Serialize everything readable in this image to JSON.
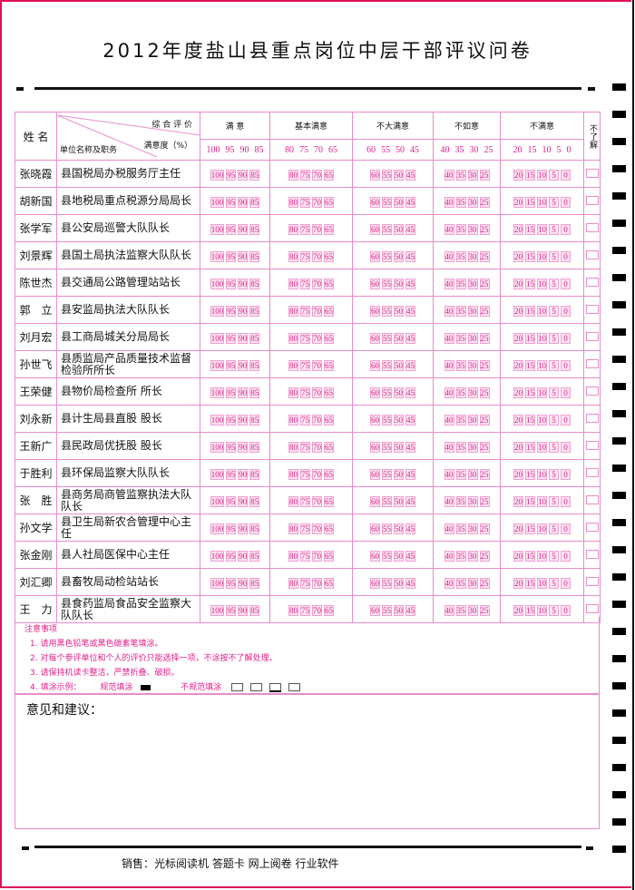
{
  "title": "2012年度盐山县重点岗位中层干部评议问卷",
  "header": {
    "name_label": "姓 名",
    "overall_label": "综 合 评 价",
    "satisfaction_label": "满意度（%）",
    "unit_label": "单位名称及职务",
    "unknown_label": "不了解",
    "categories": [
      {
        "label": "满  意",
        "scale": [
          "100",
          "95",
          "90",
          "85"
        ]
      },
      {
        "label": "基本满意",
        "scale": [
          "80",
          "75",
          "70",
          "65"
        ]
      },
      {
        "label": "不大满意",
        "scale": [
          "60",
          "55",
          "50",
          "45"
        ]
      },
      {
        "label": "不如意",
        "scale": [
          "40",
          "35",
          "30",
          "25"
        ]
      },
      {
        "label": "不满意",
        "scale": [
          "20",
          "15",
          "10",
          "5",
          "0"
        ]
      }
    ]
  },
  "rows": [
    {
      "name": "张晓霞",
      "unit": "县国税局办税服务厅主任"
    },
    {
      "name": "胡新国",
      "unit": "县地税局重点税源分局局长"
    },
    {
      "name": "张学军",
      "unit": "县公安局巡警大队队长"
    },
    {
      "name": "刘景辉",
      "unit": "县国土局执法监察大队队长"
    },
    {
      "name": "陈世杰",
      "unit": "县交通局公路管理站站长"
    },
    {
      "name": "郭　立",
      "unit": "县安监局执法大队队长"
    },
    {
      "name": "刘月宏",
      "unit": "县工商局城关分局局长"
    },
    {
      "name": "孙世飞",
      "unit": "县质监局产品质量技术监督检验所所长"
    },
    {
      "name": "王荣健",
      "unit": "县物价局检查所 所长"
    },
    {
      "name": "刘永新",
      "unit": "县计生局县直股 股长"
    },
    {
      "name": "王新广",
      "unit": "县民政局优抚股 股长"
    },
    {
      "name": "于胜利",
      "unit": "县环保局监察大队队长"
    },
    {
      "name": "张　胜",
      "unit": "县商务局商管监察执法大队队长"
    },
    {
      "name": "孙文学",
      "unit": "县卫生局新农合管理中心主任"
    },
    {
      "name": "张金刚",
      "unit": "县人社局医保中心主任"
    },
    {
      "name": "刘汇卿",
      "unit": "县畜牧局动检站站长"
    },
    {
      "name": "王　力",
      "unit": "县食药监局食品安全监察大队队长"
    }
  ],
  "notes": {
    "heading": "注意事项",
    "items": [
      "1. 请用黑色铅笔或黑色碳素笔填涂。",
      "2. 对每个参评单位和个人的评价只能选择一项，不涂按不了解处理。",
      "3. 请保持机读卡整洁，严禁折叠、破损。"
    ],
    "example_label": "4. 填涂示例：",
    "correct_label": "规范填涂",
    "incorrect_label": "不规范填涂"
  },
  "suggestions_label": "意见和建议：",
  "footer": "销售：光标阅读机  答题卡  网上阅卷  行业软件",
  "colors": {
    "accent": "#e0208a",
    "grid": "#e88ccc",
    "border": "#e0105a"
  }
}
